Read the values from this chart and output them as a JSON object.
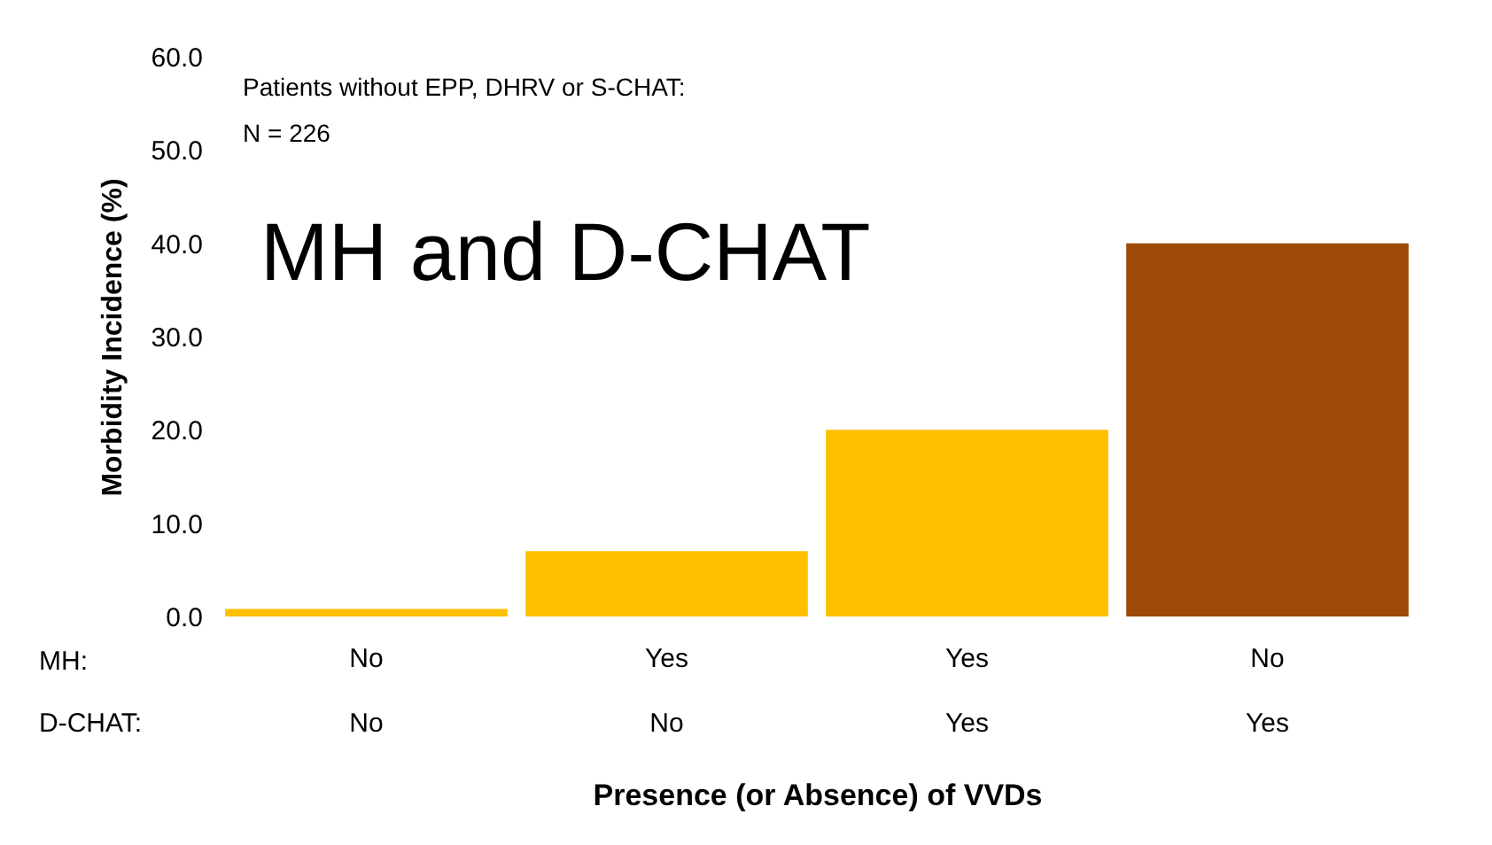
{
  "chart_data": {
    "type": "bar",
    "ylabel": "Morbidity Incidence (%)",
    "xlabel": "Presence (or Absence) of VVDs",
    "categories": [
      "No",
      "Yes",
      "Yes",
      "No"
    ],
    "values": [
      0.8,
      7.0,
      20.0,
      40.0
    ],
    "colors": [
      "#ffc000",
      "#ffc000",
      "#ffc000",
      "#9c4a06"
    ],
    "ylim": [
      0,
      60
    ],
    "yticks": [
      {
        "value": 0,
        "label": "0.0"
      },
      {
        "value": 10,
        "label": "10.0"
      },
      {
        "value": 20,
        "label": "20.0"
      },
      {
        "value": 30,
        "label": "30.0"
      },
      {
        "value": 40,
        "label": "40.0"
      },
      {
        "value": 50,
        "label": "50.0"
      },
      {
        "value": 60,
        "label": "60.0"
      }
    ],
    "grid": false,
    "annotations": [
      "Patients without EPP, DHRV or S-CHAT:",
      "N = 226",
      "MH and D-CHAT",
      "MH:",
      "D-CHAT:",
      "No",
      "No",
      "Yes",
      "Yes"
    ]
  }
}
